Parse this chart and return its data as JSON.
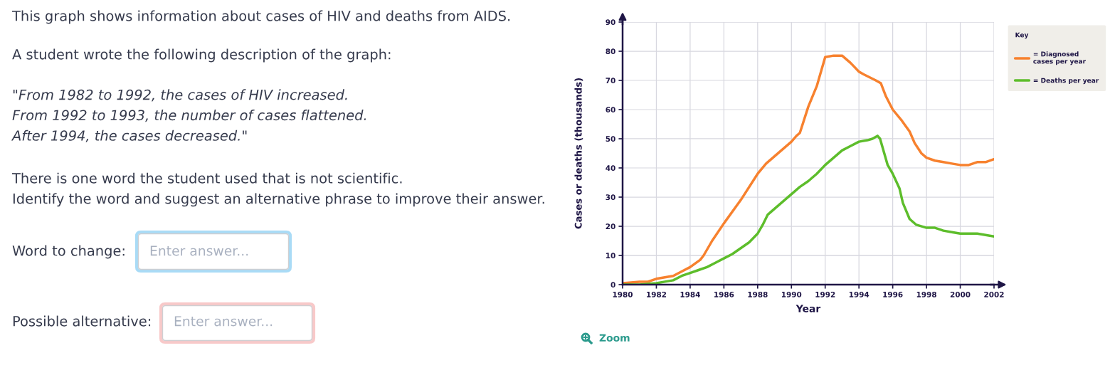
{
  "chart_data": {
    "type": "line",
    "annotations": [
      "This graph shows information about cases of HIV and deaths from AIDS.",
      "A student wrote the following description of the graph:",
      "\"From 1982 to 1992, the cases of HIV increased.\nFrom 1992 to 1993, the number of cases flattened.\nAfter 1994, the cases decreased.\"",
      "There is one word the student used that is not scientific.\nIdentify the word and suggest an alternative phrase to improve their answer.",
      "Word to change:",
      "Enter answer...",
      "Possible alternative:",
      "Enter answer...",
      "Zoom"
    ],
    "xlabel": "Year",
    "ylabel": "Cases or deaths (thousands)",
    "legend_title": "Key",
    "series": [
      {
        "name": "= Diagnosed\ncases per year",
        "color": "#f7812e",
        "x": [
          1980,
          1981,
          1981.5,
          1982,
          1983,
          1983.5,
          1984,
          1984.6,
          1984.8,
          1985.3,
          1986,
          1987,
          1988,
          1988.5,
          1989,
          1990,
          1990.3,
          1990.5,
          1991,
          1991.5,
          1992,
          1992.5,
          1993,
          1993.5,
          1994,
          1994.3,
          1995,
          1995.3,
          1995.6,
          1996,
          1996.5,
          1997,
          1997.3,
          1997.7,
          1998,
          1998.5,
          1999,
          1999.5,
          2000,
          2000.5,
          2001,
          2001.5,
          2002
        ],
        "values": [
          0.5,
          1,
          1,
          2,
          3,
          4.5,
          6,
          8.5,
          10,
          15,
          21,
          29,
          38,
          41.5,
          44,
          49,
          51,
          52,
          61,
          68,
          78,
          78.5,
          78.5,
          76,
          73,
          72,
          70,
          69,
          64.5,
          60,
          56.5,
          52.5,
          48.5,
          45,
          43.5,
          42.5,
          42,
          41.5,
          41,
          41,
          42,
          42,
          43
        ]
      },
      {
        "name": "= Deaths per year",
        "color": "#5dbd2b",
        "x": [
          1980,
          1981,
          1982,
          1982.5,
          1983,
          1983.5,
          1984,
          1984.5,
          1985,
          1985.5,
          1986,
          1986.5,
          1987,
          1987.5,
          1988,
          1988.3,
          1988.6,
          1989,
          1989.5,
          1990,
          1990.5,
          1991,
          1991.5,
          1992,
          1992.5,
          1993,
          1993.5,
          1994,
          1994.5,
          1994.8,
          1995.1,
          1995.25,
          1995.5,
          1995.7,
          1996,
          1996.4,
          1996.6,
          1997,
          1997.4,
          1998,
          1998.5,
          1999,
          1999.5,
          2000,
          2001,
          2001.5,
          2002
        ],
        "values": [
          0,
          0,
          0.5,
          1,
          1.5,
          3,
          4,
          5,
          6,
          7.5,
          9,
          10.5,
          12.5,
          14.5,
          17.5,
          20.5,
          24,
          26,
          28.5,
          31,
          33.5,
          35.5,
          38,
          41,
          43.5,
          46,
          47.5,
          49,
          49.5,
          50,
          51,
          50,
          45,
          41,
          38,
          33,
          28,
          22.5,
          20.5,
          19.5,
          19.5,
          18.5,
          18,
          17.5,
          17.5,
          17,
          16.5
        ]
      }
    ],
    "xlim": [
      1980,
      2002
    ],
    "ylim": [
      0,
      90
    ],
    "xticks": [
      1980,
      1982,
      1984,
      1986,
      1988,
      1990,
      1992,
      1994,
      1996,
      1998,
      2000,
      2002
    ],
    "yticks": [
      0,
      10,
      20,
      30,
      40,
      50,
      60,
      70,
      80,
      90
    ],
    "grid": true,
    "legend": "top right"
  }
}
